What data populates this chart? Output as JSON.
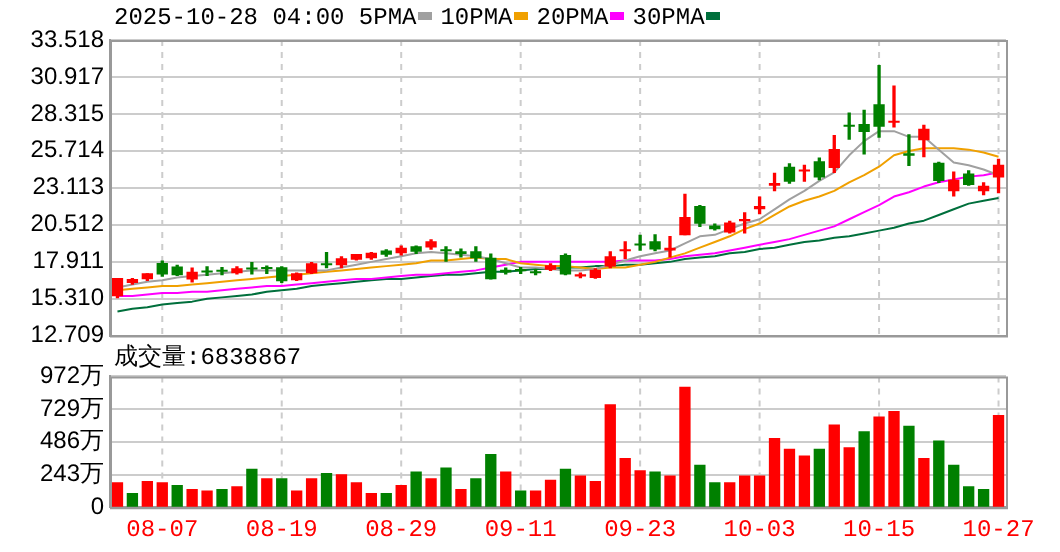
{
  "chart_data": [
    {
      "type": "candlestick",
      "title": "2025-10-28 04:00",
      "legend": "top",
      "grid": true,
      "tick_labels": "y",
      "marker": "none",
      "categories": [
        null,
        null,
        null,
        null,
        null,
        null,
        null,
        null,
        null,
        null,
        null,
        null,
        null,
        null,
        null,
        null,
        null,
        null,
        null,
        null,
        null,
        null,
        null,
        null,
        null,
        null,
        null,
        null,
        null,
        null,
        null,
        null,
        null,
        null,
        null,
        null,
        null,
        null,
        null,
        null,
        null,
        null,
        null,
        null,
        null,
        null,
        null,
        null,
        null,
        null,
        null,
        null,
        null,
        null,
        null,
        null,
        null,
        null,
        null,
        null
      ],
      "ohlc": [
        [
          15.52,
          16.72,
          15.38,
          16.72
        ],
        [
          16.45,
          16.72,
          16.34,
          16.65
        ],
        [
          16.72,
          17.05,
          16.6,
          17.05
        ],
        [
          17.77,
          17.95,
          16.9,
          17.05
        ],
        [
          17.53,
          17.65,
          16.95,
          17.0
        ],
        [
          16.7,
          17.45,
          16.5,
          17.15
        ],
        [
          17.25,
          17.55,
          16.95,
          17.2
        ],
        [
          17.3,
          17.5,
          17.0,
          17.25
        ],
        [
          17.15,
          17.55,
          17.05,
          17.4
        ],
        [
          17.45,
          17.85,
          17.05,
          17.4
        ],
        [
          17.5,
          17.6,
          17.1,
          17.45
        ],
        [
          17.48,
          17.55,
          16.45,
          16.58
        ],
        [
          16.65,
          17.1,
          16.6,
          17.05
        ],
        [
          17.15,
          17.85,
          17.1,
          17.75
        ],
        [
          17.75,
          18.55,
          17.5,
          17.7
        ],
        [
          17.7,
          18.25,
          17.5,
          18.1
        ],
        [
          18.1,
          18.4,
          18.05,
          18.4
        ],
        [
          18.2,
          18.55,
          18.1,
          18.5
        ],
        [
          18.65,
          18.75,
          18.3,
          18.45
        ],
        [
          18.55,
          19.0,
          18.4,
          18.85
        ],
        [
          18.95,
          19.0,
          18.5,
          18.65
        ],
        [
          18.95,
          19.45,
          18.8,
          19.3
        ],
        [
          18.75,
          18.95,
          17.95,
          18.7
        ],
        [
          18.6,
          18.8,
          18.25,
          18.5
        ],
        [
          18.6,
          18.95,
          17.95,
          18.2
        ],
        [
          18.15,
          18.45,
          16.7,
          16.72
        ],
        [
          17.3,
          17.45,
          17.05,
          17.2
        ],
        [
          17.35,
          17.5,
          17.1,
          17.29
        ],
        [
          17.2,
          17.35,
          17.0,
          17.15
        ],
        [
          17.39,
          17.75,
          17.3,
          17.62
        ],
        [
          18.34,
          18.45,
          17.0,
          17.05
        ],
        [
          16.92,
          17.1,
          16.8,
          16.98
        ],
        [
          16.81,
          17.4,
          16.75,
          17.29
        ],
        [
          17.62,
          18.6,
          17.5,
          18.25
        ],
        [
          18.7,
          19.3,
          18.15,
          18.75
        ],
        [
          19.15,
          19.77,
          18.72,
          19.1
        ],
        [
          19.3,
          19.8,
          18.7,
          18.82
        ],
        [
          18.75,
          19.68,
          18.25,
          18.85
        ],
        [
          19.82,
          22.64,
          19.82,
          21.01
        ],
        [
          21.78,
          21.85,
          20.4,
          20.63
        ],
        [
          20.42,
          20.55,
          20.15,
          20.25
        ],
        [
          20.01,
          20.75,
          19.95,
          20.63
        ],
        [
          20.8,
          21.35,
          19.95,
          20.87
        ],
        [
          21.65,
          22.45,
          21.3,
          21.78
        ],
        [
          23.3,
          24.12,
          22.92,
          23.4
        ],
        [
          24.55,
          24.8,
          23.45,
          23.59
        ],
        [
          24.3,
          24.69,
          23.59,
          24.36
        ],
        [
          24.93,
          25.2,
          23.7,
          23.88
        ],
        [
          24.55,
          26.79,
          24.21,
          25.79
        ],
        [
          27.5,
          28.37,
          26.55,
          27.46
        ],
        [
          27.55,
          28.56,
          25.5,
          27.08
        ],
        [
          28.94,
          31.71,
          26.69,
          27.46
        ],
        [
          27.74,
          30.27,
          27.41,
          27.79
        ],
        [
          25.5,
          26.84,
          24.69,
          25.41
        ],
        [
          26.5,
          27.5,
          25.31,
          27.22
        ],
        [
          24.83,
          24.9,
          23.5,
          23.64
        ],
        [
          22.92,
          24.21,
          22.54,
          23.64
        ],
        [
          24.07,
          24.3,
          23.3,
          23.35
        ],
        [
          22.92,
          23.45,
          22.64,
          23.21
        ],
        [
          23.88,
          25.12,
          22.78,
          24.69
        ]
      ],
      "colors": [
        "#ff0000",
        "#ff0000",
        "#ff0000",
        "#008000",
        "#008000",
        "#ff0000",
        "#008000",
        "#008000",
        "#ff0000",
        "#008000",
        "#008000",
        "#008000",
        "#ff0000",
        "#ff0000",
        "#008000",
        "#ff0000",
        "#ff0000",
        "#ff0000",
        "#008000",
        "#ff0000",
        "#008000",
        "#ff0000",
        "#008000",
        "#008000",
        "#008000",
        "#008000",
        "#008000",
        "#008000",
        "#008000",
        "#ff0000",
        "#008000",
        "#ff0000",
        "#ff0000",
        "#ff0000",
        "#ff0000",
        "#008000",
        "#008000",
        "#ff0000",
        "#ff0000",
        "#008000",
        "#008000",
        "#ff0000",
        "#ff0000",
        "#ff0000",
        "#ff0000",
        "#008000",
        "#ff0000",
        "#008000",
        "#ff0000",
        "#008000",
        "#008000",
        "#008000",
        "#ff0000",
        "#008000",
        "#ff0000",
        "#008000",
        "#ff0000",
        "#008000",
        "#ff0000",
        "#ff0000"
      ],
      "series": [
        {
          "type": "line",
          "name": "5PMA",
          "color": "#a0a0a0",
          "values": [
            16.1,
            16.3,
            16.5,
            16.6,
            16.8,
            16.9,
            17.0,
            17.1,
            17.2,
            17.3,
            17.3,
            17.3,
            17.3,
            17.3,
            17.3,
            17.5,
            17.7,
            17.9,
            18.1,
            18.3,
            18.5,
            18.6,
            18.5,
            18.4,
            18.3,
            18.1,
            17.8,
            17.5,
            17.5,
            17.4,
            17.3,
            17.3,
            17.4,
            17.7,
            18.0,
            18.3,
            18.5,
            18.7,
            19.2,
            19.7,
            19.8,
            20.2,
            20.6,
            20.9,
            21.6,
            22.3,
            22.9,
            23.6,
            24.2,
            25.4,
            26.4,
            27.1,
            27.1,
            26.7,
            26.7,
            25.8,
            24.9,
            24.7,
            24.4,
            24.0
          ]
        },
        {
          "type": "line",
          "name": "10PMA",
          "color": "#f0a000",
          "values": [
            15.9,
            16.0,
            16.1,
            16.2,
            16.2,
            16.3,
            16.4,
            16.5,
            16.6,
            16.7,
            16.8,
            16.9,
            17.0,
            17.1,
            17.2,
            17.3,
            17.4,
            17.5,
            17.6,
            17.7,
            17.8,
            18.0,
            18.0,
            18.1,
            18.2,
            18.1,
            18.1,
            17.8,
            17.7,
            17.6,
            17.6,
            17.5,
            17.4,
            17.5,
            17.5,
            17.7,
            17.9,
            18.2,
            18.5,
            18.9,
            19.3,
            19.7,
            20.2,
            20.6,
            21.2,
            21.8,
            22.2,
            22.5,
            22.9,
            23.5,
            24.0,
            24.6,
            25.4,
            25.7,
            25.9,
            25.9,
            25.9,
            25.8,
            25.6,
            25.3
          ]
        },
        {
          "type": "line",
          "name": "20PMA",
          "color": "#ff00ff",
          "values": [
            15.5,
            15.5,
            15.6,
            15.7,
            15.7,
            15.8,
            15.8,
            15.9,
            16.0,
            16.1,
            16.2,
            16.2,
            16.3,
            16.4,
            16.5,
            16.6,
            16.7,
            16.7,
            16.8,
            16.9,
            17.0,
            17.0,
            17.1,
            17.2,
            17.3,
            17.5,
            17.7,
            17.9,
            17.9,
            17.9,
            17.9,
            17.9,
            17.9,
            17.9,
            18.0,
            18.0,
            18.0,
            18.1,
            18.3,
            18.4,
            18.5,
            18.7,
            18.9,
            19.1,
            19.3,
            19.5,
            19.8,
            20.1,
            20.4,
            20.9,
            21.4,
            21.9,
            22.5,
            22.8,
            23.2,
            23.5,
            23.7,
            23.9,
            24.0,
            24.2
          ]
        },
        {
          "type": "line",
          "name": "30PMA",
          "color": "#006f3c",
          "values": [
            14.4,
            14.6,
            14.7,
            14.9,
            15.0,
            15.1,
            15.3,
            15.4,
            15.5,
            15.6,
            15.8,
            15.9,
            16.0,
            16.2,
            16.3,
            16.4,
            16.5,
            16.6,
            16.7,
            16.7,
            16.8,
            16.9,
            17.0,
            17.0,
            17.1,
            17.2,
            17.2,
            17.3,
            17.4,
            17.4,
            17.5,
            17.5,
            17.6,
            17.6,
            17.7,
            17.7,
            17.8,
            17.9,
            18.1,
            18.2,
            18.3,
            18.5,
            18.6,
            18.8,
            18.9,
            19.1,
            19.3,
            19.4,
            19.6,
            19.7,
            19.9,
            20.1,
            20.3,
            20.6,
            20.8,
            21.2,
            21.6,
            22.0,
            22.2,
            22.4
          ]
        }
      ],
      "ylim": [
        12.709,
        33.518
      ],
      "yticks": [
        12.709,
        {
          "value": 15.31,
          "label": "15.310"
        },
        17.911,
        20.512,
        23.113,
        25.714,
        28.315,
        30.917,
        33.518
      ]
    },
    {
      "type": "bar",
      "title": "成交量:6838867",
      "grid": true,
      "categories": [
        null,
        null,
        null,
        "08-07",
        null,
        null,
        null,
        null,
        null,
        null,
        null,
        "08-19",
        null,
        null,
        null,
        null,
        null,
        null,
        null,
        "08-29",
        null,
        null,
        null,
        null,
        null,
        null,
        null,
        "09-11",
        null,
        null,
        null,
        null,
        null,
        null,
        null,
        "09-23",
        null,
        null,
        null,
        null,
        null,
        null,
        null,
        "10-03",
        null,
        null,
        null,
        null,
        null,
        null,
        null,
        "10-15",
        null,
        null,
        null,
        null,
        null,
        null,
        null,
        "10-27"
      ],
      "values": [
        180,
        100,
        190,
        180,
        160,
        130,
        120,
        130,
        150,
        280,
        210,
        210,
        120,
        210,
        250,
        240,
        180,
        100,
        100,
        160,
        260,
        210,
        290,
        130,
        210,
        390,
        260,
        120,
        120,
        200,
        280,
        230,
        190,
        760,
        360,
        270,
        260,
        230,
        890,
        310,
        180,
        180,
        230,
        230,
        510,
        430,
        380,
        430,
        610,
        440,
        560,
        670,
        710,
        600,
        360,
        490,
        310,
        150,
        130,
        680
      ],
      "colors": [
        "#ff0000",
        "#008000",
        "#ff0000",
        "#ff0000",
        "#008000",
        "#ff0000",
        "#ff0000",
        "#008000",
        "#ff0000",
        "#008000",
        "#ff0000",
        "#008000",
        "#ff0000",
        "#ff0000",
        "#008000",
        "#ff0000",
        "#ff0000",
        "#ff0000",
        "#008000",
        "#ff0000",
        "#008000",
        "#ff0000",
        "#008000",
        "#ff0000",
        "#008000",
        "#008000",
        "#ff0000",
        "#008000",
        "#ff0000",
        "#ff0000",
        "#008000",
        "#ff0000",
        "#ff0000",
        "#ff0000",
        "#ff0000",
        "#ff0000",
        "#008000",
        "#ff0000",
        "#ff0000",
        "#008000",
        "#008000",
        "#ff0000",
        "#ff0000",
        "#ff0000",
        "#ff0000",
        "#ff0000",
        "#ff0000",
        "#008000",
        "#ff0000",
        "#ff0000",
        "#008000",
        "#ff0000",
        "#ff0000",
        "#008000",
        "#ff0000",
        "#008000",
        "#008000",
        "#008000",
        "#008000",
        "#ff0000"
      ],
      "ylim": [
        0,
        972
      ],
      "yticks": [
        0,
        {
          "value": 243,
          "label": "243万"
        },
        {
          "value": 486,
          "label": "486万"
        },
        {
          "value": 729,
          "label": "729万"
        },
        {
          "value": 972,
          "label": "972万"
        }
      ]
    }
  ]
}
